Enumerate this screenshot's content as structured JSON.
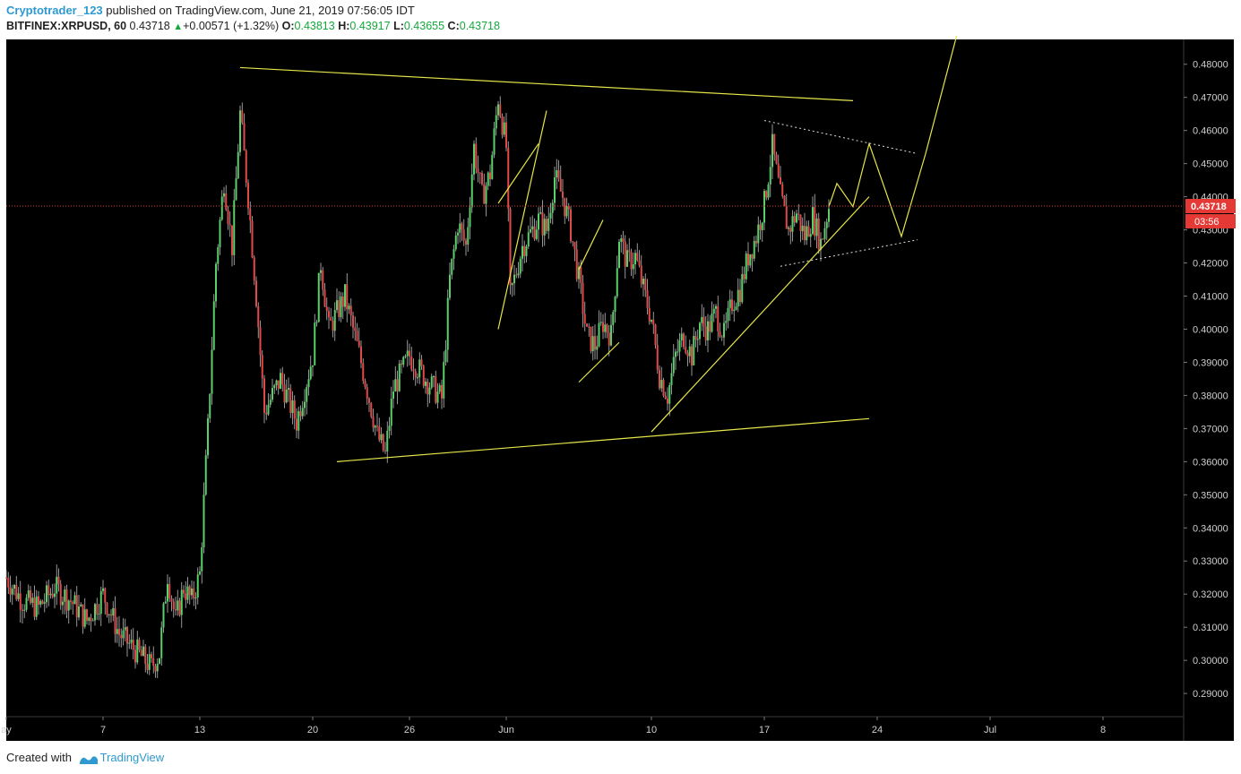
{
  "header": {
    "author": "Cryptotrader_123",
    "published_text": "published on TradingView.com, June 21, 2019 07:56:05 IDT",
    "symbol": "BITFINEX:XRPUSD, 60",
    "last": "0.43718",
    "change": "+0.00571 (+1.32%)",
    "open_label": "O:",
    "open": "0.43813",
    "high_label": "H:",
    "high": "0.43917",
    "low_label": "L:",
    "low": "0.43655",
    "close_label": "C:",
    "close": "0.43718"
  },
  "footer": {
    "created_with": "Created with",
    "brand": "TradingView"
  },
  "colors": {
    "up": "#59d06a",
    "down": "#e04a4a",
    "drawing": "#e6e64a",
    "price_line": "#e53935",
    "background": "#000000",
    "axis_text": "#cfcfcf"
  },
  "chart_data": {
    "type": "candlestick",
    "symbol": "BITFINEX:XRPUSD",
    "interval": "60",
    "x_tick_labels": [
      {
        "label": "ay",
        "date": "2019-05-01"
      },
      {
        "label": "7",
        "date": "2019-05-07"
      },
      {
        "label": "13",
        "date": "2019-05-13"
      },
      {
        "label": "20",
        "date": "2019-05-20"
      },
      {
        "label": "26",
        "date": "2019-05-26"
      },
      {
        "label": "Jun",
        "date": "2019-06-01"
      },
      {
        "label": "10",
        "date": "2019-06-10"
      },
      {
        "label": "17",
        "date": "2019-06-17"
      },
      {
        "label": "24",
        "date": "2019-06-24"
      },
      {
        "label": "Jul",
        "date": "2019-07-01"
      },
      {
        "label": "8",
        "date": "2019-07-08"
      }
    ],
    "y_ticks": [
      "0.29000",
      "0.30000",
      "0.31000",
      "0.32000",
      "0.33000",
      "0.34000",
      "0.35000",
      "0.36000",
      "0.37000",
      "0.38000",
      "0.39000",
      "0.40000",
      "0.41000",
      "0.42000",
      "0.43000",
      "0.44000",
      "0.45000",
      "0.46000",
      "0.47000",
      "0.48000"
    ],
    "ylim": [
      0.283,
      0.4875
    ],
    "xlim": [
      "2019-05-01",
      "2019-07-13"
    ],
    "last_price": "0.43718",
    "countdown": "03:56",
    "price_path": [
      [
        "2019-05-01T00",
        0.325
      ],
      [
        "2019-05-02T00",
        0.318
      ],
      [
        "2019-05-03T00",
        0.316
      ],
      [
        "2019-05-04T00",
        0.322
      ],
      [
        "2019-05-05T00",
        0.318
      ],
      [
        "2019-05-06T00",
        0.312
      ],
      [
        "2019-05-07T00",
        0.32
      ],
      [
        "2019-05-08T00",
        0.308
      ],
      [
        "2019-05-09T00",
        0.303
      ],
      [
        "2019-05-10T00",
        0.298
      ],
      [
        "2019-05-10T12",
        0.302
      ],
      [
        "2019-05-11T00",
        0.326
      ],
      [
        "2019-05-11T12",
        0.312
      ],
      [
        "2019-05-12T00",
        0.322
      ],
      [
        "2019-05-12T12",
        0.318
      ],
      [
        "2019-05-13T00",
        0.326
      ],
      [
        "2019-05-13T12",
        0.37
      ],
      [
        "2019-05-14T00",
        0.42
      ],
      [
        "2019-05-14T12",
        0.445
      ],
      [
        "2019-05-15T00",
        0.425
      ],
      [
        "2019-05-15T12",
        0.465
      ],
      [
        "2019-05-16T00",
        0.44
      ],
      [
        "2019-05-16T12",
        0.41
      ],
      [
        "2019-05-17T00",
        0.375
      ],
      [
        "2019-05-18T00",
        0.385
      ],
      [
        "2019-05-19T00",
        0.372
      ],
      [
        "2019-05-20T00",
        0.392
      ],
      [
        "2019-05-20T12",
        0.42
      ],
      [
        "2019-05-21T00",
        0.4
      ],
      [
        "2019-05-22T00",
        0.41
      ],
      [
        "2019-05-23T00",
        0.39
      ],
      [
        "2019-05-24T00",
        0.368
      ],
      [
        "2019-05-24T12",
        0.362
      ],
      [
        "2019-05-25T00",
        0.382
      ],
      [
        "2019-05-26T00",
        0.392
      ],
      [
        "2019-05-27T00",
        0.385
      ],
      [
        "2019-05-28T00",
        0.379
      ],
      [
        "2019-05-28T12",
        0.415
      ],
      [
        "2019-05-29T00",
        0.432
      ],
      [
        "2019-05-29T12",
        0.425
      ],
      [
        "2019-05-30T00",
        0.455
      ],
      [
        "2019-05-30T12",
        0.44
      ],
      [
        "2019-05-31T00",
        0.447
      ],
      [
        "2019-05-31T12",
        0.47
      ],
      [
        "2019-06-01T00",
        0.455
      ],
      [
        "2019-06-01T06",
        0.41
      ],
      [
        "2019-06-02T00",
        0.425
      ],
      [
        "2019-06-03T00",
        0.433
      ],
      [
        "2019-06-03T12",
        0.43
      ],
      [
        "2019-06-04T00",
        0.446
      ],
      [
        "2019-06-04T12",
        0.44
      ],
      [
        "2019-06-05T00",
        0.43
      ],
      [
        "2019-06-05T12",
        0.415
      ],
      [
        "2019-06-06T00",
        0.398
      ],
      [
        "2019-06-06T12",
        0.395
      ],
      [
        "2019-06-07T00",
        0.402
      ],
      [
        "2019-06-07T12",
        0.398
      ],
      [
        "2019-06-08T00",
        0.428
      ],
      [
        "2019-06-08T12",
        0.42
      ],
      [
        "2019-06-09T00",
        0.422
      ],
      [
        "2019-06-09T12",
        0.412
      ],
      [
        "2019-06-10T00",
        0.403
      ],
      [
        "2019-06-10T12",
        0.386
      ],
      [
        "2019-06-11T00",
        0.38
      ],
      [
        "2019-06-11T12",
        0.392
      ],
      [
        "2019-06-12T00",
        0.398
      ],
      [
        "2019-06-12T12",
        0.392
      ],
      [
        "2019-06-13T00",
        0.402
      ],
      [
        "2019-06-13T12",
        0.4
      ],
      [
        "2019-06-14T00",
        0.405
      ],
      [
        "2019-06-14T12",
        0.398
      ],
      [
        "2019-06-15T00",
        0.408
      ],
      [
        "2019-06-15T12",
        0.412
      ],
      [
        "2019-06-16T00",
        0.422
      ],
      [
        "2019-06-16T12",
        0.428
      ],
      [
        "2019-06-17T00",
        0.438
      ],
      [
        "2019-06-17T12",
        0.455
      ],
      [
        "2019-06-18T00",
        0.44
      ],
      [
        "2019-06-18T12",
        0.43
      ],
      [
        "2019-06-19T00",
        0.435
      ],
      [
        "2019-06-19T12",
        0.428
      ],
      [
        "2019-06-20T00",
        0.434
      ],
      [
        "2019-06-20T12",
        0.426
      ],
      [
        "2019-06-21T00",
        0.437
      ]
    ],
    "drawings": {
      "resistance_line": [
        [
          "2019-05-15T12",
          0.479
        ],
        [
          "2019-06-22T12",
          0.469
        ]
      ],
      "support_line": [
        [
          "2019-05-21T12",
          0.36
        ],
        [
          "2019-06-23T12",
          0.373
        ]
      ],
      "ascending_trendline": [
        [
          "2019-06-10T00",
          0.369
        ],
        [
          "2019-06-23T12",
          0.44
        ]
      ],
      "zigzag_a": [
        [
          "2019-05-31T12",
          0.4
        ],
        [
          "2019-06-03T12",
          0.466
        ]
      ],
      "zigzag_b": [
        [
          "2019-05-31T12",
          0.438
        ],
        [
          "2019-06-03T00",
          0.456
        ]
      ],
      "small_channel_upper": [
        [
          "2019-06-05T12",
          0.418
        ],
        [
          "2019-06-07T00",
          0.433
        ]
      ],
      "small_channel_lower": [
        [
          "2019-06-05T12",
          0.384
        ],
        [
          "2019-06-08T00",
          0.396
        ]
      ],
      "triangle_upper_dotted": [
        [
          "2019-06-17T00",
          0.463
        ],
        [
          "2019-06-26T12",
          0.453
        ]
      ],
      "triangle_lower_dotted": [
        [
          "2019-06-18T00",
          0.419
        ],
        [
          "2019-06-26T12",
          0.427
        ]
      ],
      "projection_path": [
        [
          "2019-06-21T00",
          0.437
        ],
        [
          "2019-06-21T12",
          0.444
        ],
        [
          "2019-06-22T12",
          0.437
        ],
        [
          "2019-06-23T12",
          0.456
        ],
        [
          "2019-06-25T12",
          0.428
        ],
        [
          "2019-06-27T00",
          0.453
        ],
        [
          "2019-06-29T00",
          0.49
        ]
      ]
    }
  }
}
